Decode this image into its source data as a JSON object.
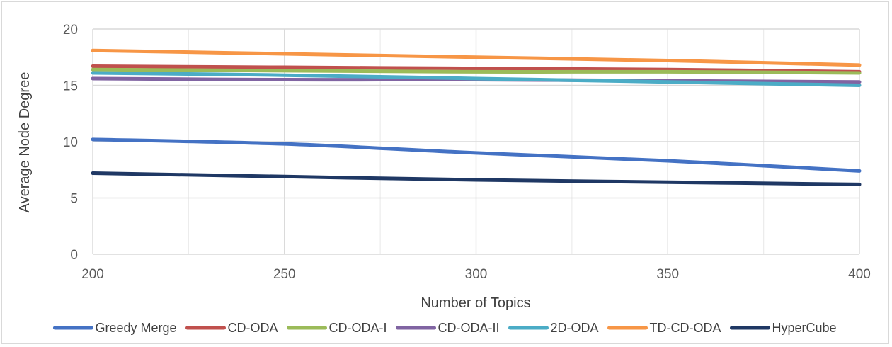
{
  "chart_data": {
    "type": "line",
    "title": "",
    "xlabel": "Number of Topics",
    "ylabel": "Average Node Degree",
    "x": [
      200,
      250,
      300,
      350,
      400
    ],
    "xlim": [
      200,
      400
    ],
    "ylim": [
      0,
      20
    ],
    "x_ticks": [
      "200",
      "250",
      "300",
      "350",
      "400"
    ],
    "y_ticks": [
      "0",
      "5",
      "10",
      "15",
      "20"
    ],
    "grid": "major and minor vertical, major horizontal",
    "legend_position": "bottom",
    "series": [
      {
        "name": "Greedy Merge",
        "color": "#4472c4",
        "values": [
          10.2,
          9.8,
          9.0,
          8.3,
          7.4
        ]
      },
      {
        "name": "CD-ODA",
        "color": "#c0504d",
        "values": [
          16.7,
          16.6,
          16.5,
          16.4,
          16.2
        ]
      },
      {
        "name": "CD-ODA-I",
        "color": "#9bbb59",
        "values": [
          16.4,
          16.3,
          16.2,
          16.2,
          16.1
        ]
      },
      {
        "name": "CD-ODA-II",
        "color": "#8064a2",
        "values": [
          15.6,
          15.5,
          15.5,
          15.4,
          15.3
        ]
      },
      {
        "name": "2D-ODA",
        "color": "#4bacc6",
        "values": [
          16.1,
          15.9,
          15.6,
          15.3,
          15.0
        ]
      },
      {
        "name": "TD-CD-ODA",
        "color": "#f79646",
        "values": [
          18.1,
          17.8,
          17.5,
          17.2,
          16.8
        ]
      },
      {
        "name": "HyperCube",
        "color": "#1f3864",
        "values": [
          7.2,
          6.9,
          6.6,
          6.4,
          6.2
        ]
      }
    ]
  }
}
